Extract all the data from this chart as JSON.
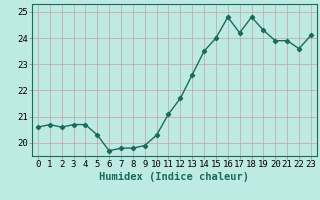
{
  "x": [
    0,
    1,
    2,
    3,
    4,
    5,
    6,
    7,
    8,
    9,
    10,
    11,
    12,
    13,
    14,
    15,
    16,
    17,
    18,
    19,
    20,
    21,
    22,
    23
  ],
  "y": [
    20.6,
    20.7,
    20.6,
    20.7,
    20.7,
    20.3,
    19.7,
    19.8,
    19.8,
    19.9,
    20.3,
    21.1,
    21.7,
    22.6,
    23.5,
    24.0,
    24.8,
    24.2,
    24.8,
    24.3,
    23.9,
    23.9,
    23.6,
    24.1
  ],
  "line_color": "#1a6b5e",
  "marker": "D",
  "marker_size": 2.2,
  "background_color": "#beeae4",
  "grid_color": "#c8a0a0",
  "xlabel": "Humidex (Indice chaleur)",
  "ylim": [
    19.5,
    25.3
  ],
  "xlim": [
    -0.5,
    23.5
  ],
  "yticks": [
    20,
    21,
    22,
    23,
    24,
    25
  ],
  "xticks": [
    0,
    1,
    2,
    3,
    4,
    5,
    6,
    7,
    8,
    9,
    10,
    11,
    12,
    13,
    14,
    15,
    16,
    17,
    18,
    19,
    20,
    21,
    22,
    23
  ],
  "xlabel_fontsize": 7.5,
  "tick_fontsize": 6.5
}
